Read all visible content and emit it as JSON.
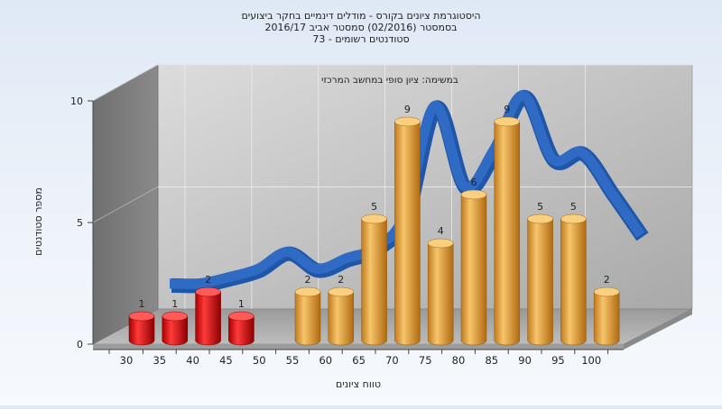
{
  "chart_data": {
    "type": "bar",
    "title_lines": [
      "היסטוגרמת ציונים בקורס - מודלים דינמיים בחקר ביצועים",
      "בסמסטר  (02/2016)  סמסטר אביב 2016/17",
      "סטודנטים רשומים - 73"
    ],
    "subtitle": "במשימה: ציון סופי במחשב המרכזי",
    "xlabel": "טווח ציונים",
    "ylabel": "מספר סטודנטים",
    "categories": [
      "30",
      "35",
      "40",
      "45",
      "50",
      "55",
      "60",
      "65",
      "70",
      "75",
      "80",
      "85",
      "90",
      "95",
      "100"
    ],
    "values": [
      1,
      1,
      2,
      1,
      0,
      2,
      2,
      5,
      9,
      4,
      6,
      9,
      5,
      5,
      2
    ],
    "y_ticks": [
      "0",
      "5",
      "10"
    ],
    "ylim": [
      0,
      10
    ],
    "bar_colors": [
      "#e01010",
      "#e01010",
      "#e01010",
      "#e01010",
      "#e01010",
      "#e8a640",
      "#e8a640",
      "#e8a640",
      "#e8a640",
      "#e8a640",
      "#e8a640",
      "#e8a640",
      "#e8a640",
      "#e8a640",
      "#e8a640"
    ],
    "curve_color": "#2f6bc4",
    "curve_values": [
      0.9,
      0.9,
      1.2,
      1.6,
      2.4,
      1.6,
      2.1,
      2.6,
      4.2,
      9.3,
      5.5,
      7.2,
      9.8,
      6.8,
      7.1,
      5.2,
      3.2
    ],
    "grid": true
  }
}
